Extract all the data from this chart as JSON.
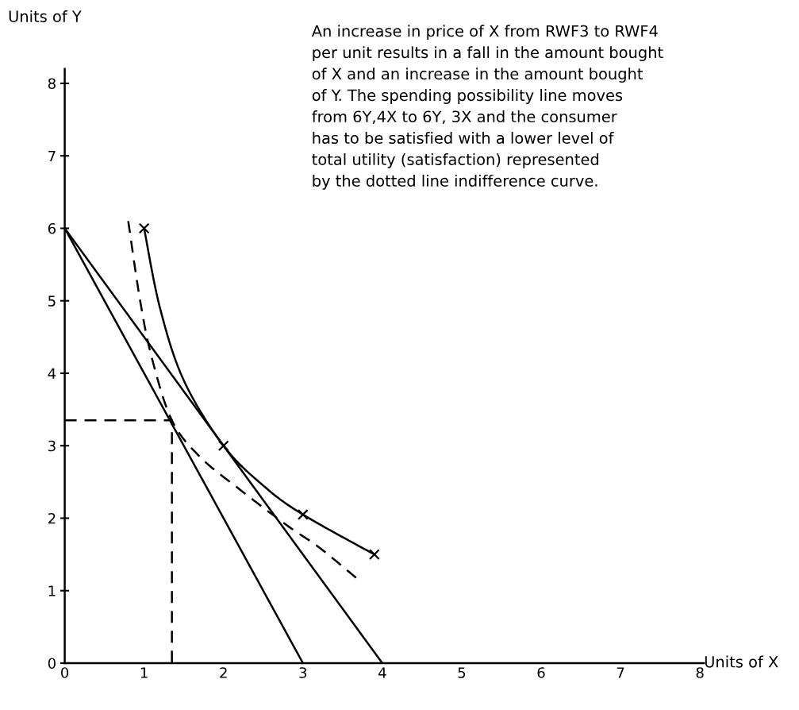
{
  "chart_data": {
    "type": "line",
    "xlabel": "Units of X",
    "ylabel": "Units of Y",
    "annotations": [
      "An increase in price of X from RWF3 to RWF4\nper unit results in a fall in the amount bought\nof X and an increase in the amount bought\nof Y. The spending possibility line moves\nfrom 6Y,4X to 6Y, 3X and the consumer\nhas to be satisfied with a lower level of\ntotal utility (satisfaction) represented\nby the dotted line indifference curve."
    ],
    "xlim": [
      0,
      8.05
    ],
    "ylim": [
      0,
      8.2
    ],
    "xticks": [
      0,
      1,
      2,
      3,
      4,
      5,
      6,
      7,
      8
    ],
    "yticks": [
      0,
      1,
      2,
      3,
      4,
      5,
      6,
      7,
      8
    ],
    "grid": false,
    "legend": false,
    "series": [
      {
        "color": "#000000",
        "x": [
          0,
          4
        ],
        "values": [
          6,
          0
        ],
        "line_style": "solid",
        "marker": "none"
      },
      {
        "color": "#000000",
        "x": [
          0,
          3
        ],
        "values": [
          6,
          0
        ],
        "line_style": "solid",
        "marker": "none"
      },
      {
        "color": "#000000",
        "x": [
          1,
          1.2,
          1.5,
          2,
          2.5,
          3,
          3.9
        ],
        "values": [
          6,
          4.9,
          3.9,
          3,
          2.45,
          2.05,
          1.5
        ],
        "line_style": "solid",
        "marker": "none"
      },
      {
        "color": "#000000",
        "type": "scatter",
        "x": [
          1,
          2,
          3,
          3.9
        ],
        "values": [
          6,
          3,
          2.05,
          1.5
        ],
        "marker": "cross"
      },
      {
        "color": "#000000",
        "x": [
          0.8,
          0.95,
          1.1,
          1.35,
          1.7,
          2.2,
          2.8,
          3.2,
          3.7
        ],
        "values": [
          6.1,
          5.0,
          4.2,
          3.35,
          2.85,
          2.4,
          1.9,
          1.6,
          1.15
        ],
        "line_style": "dashed",
        "marker": "none"
      },
      {
        "color": "#000000",
        "x": [
          0,
          1.35,
          1.35
        ],
        "values": [
          3.35,
          3.35,
          0
        ],
        "line_style": "dashed",
        "marker": "none"
      }
    ]
  }
}
